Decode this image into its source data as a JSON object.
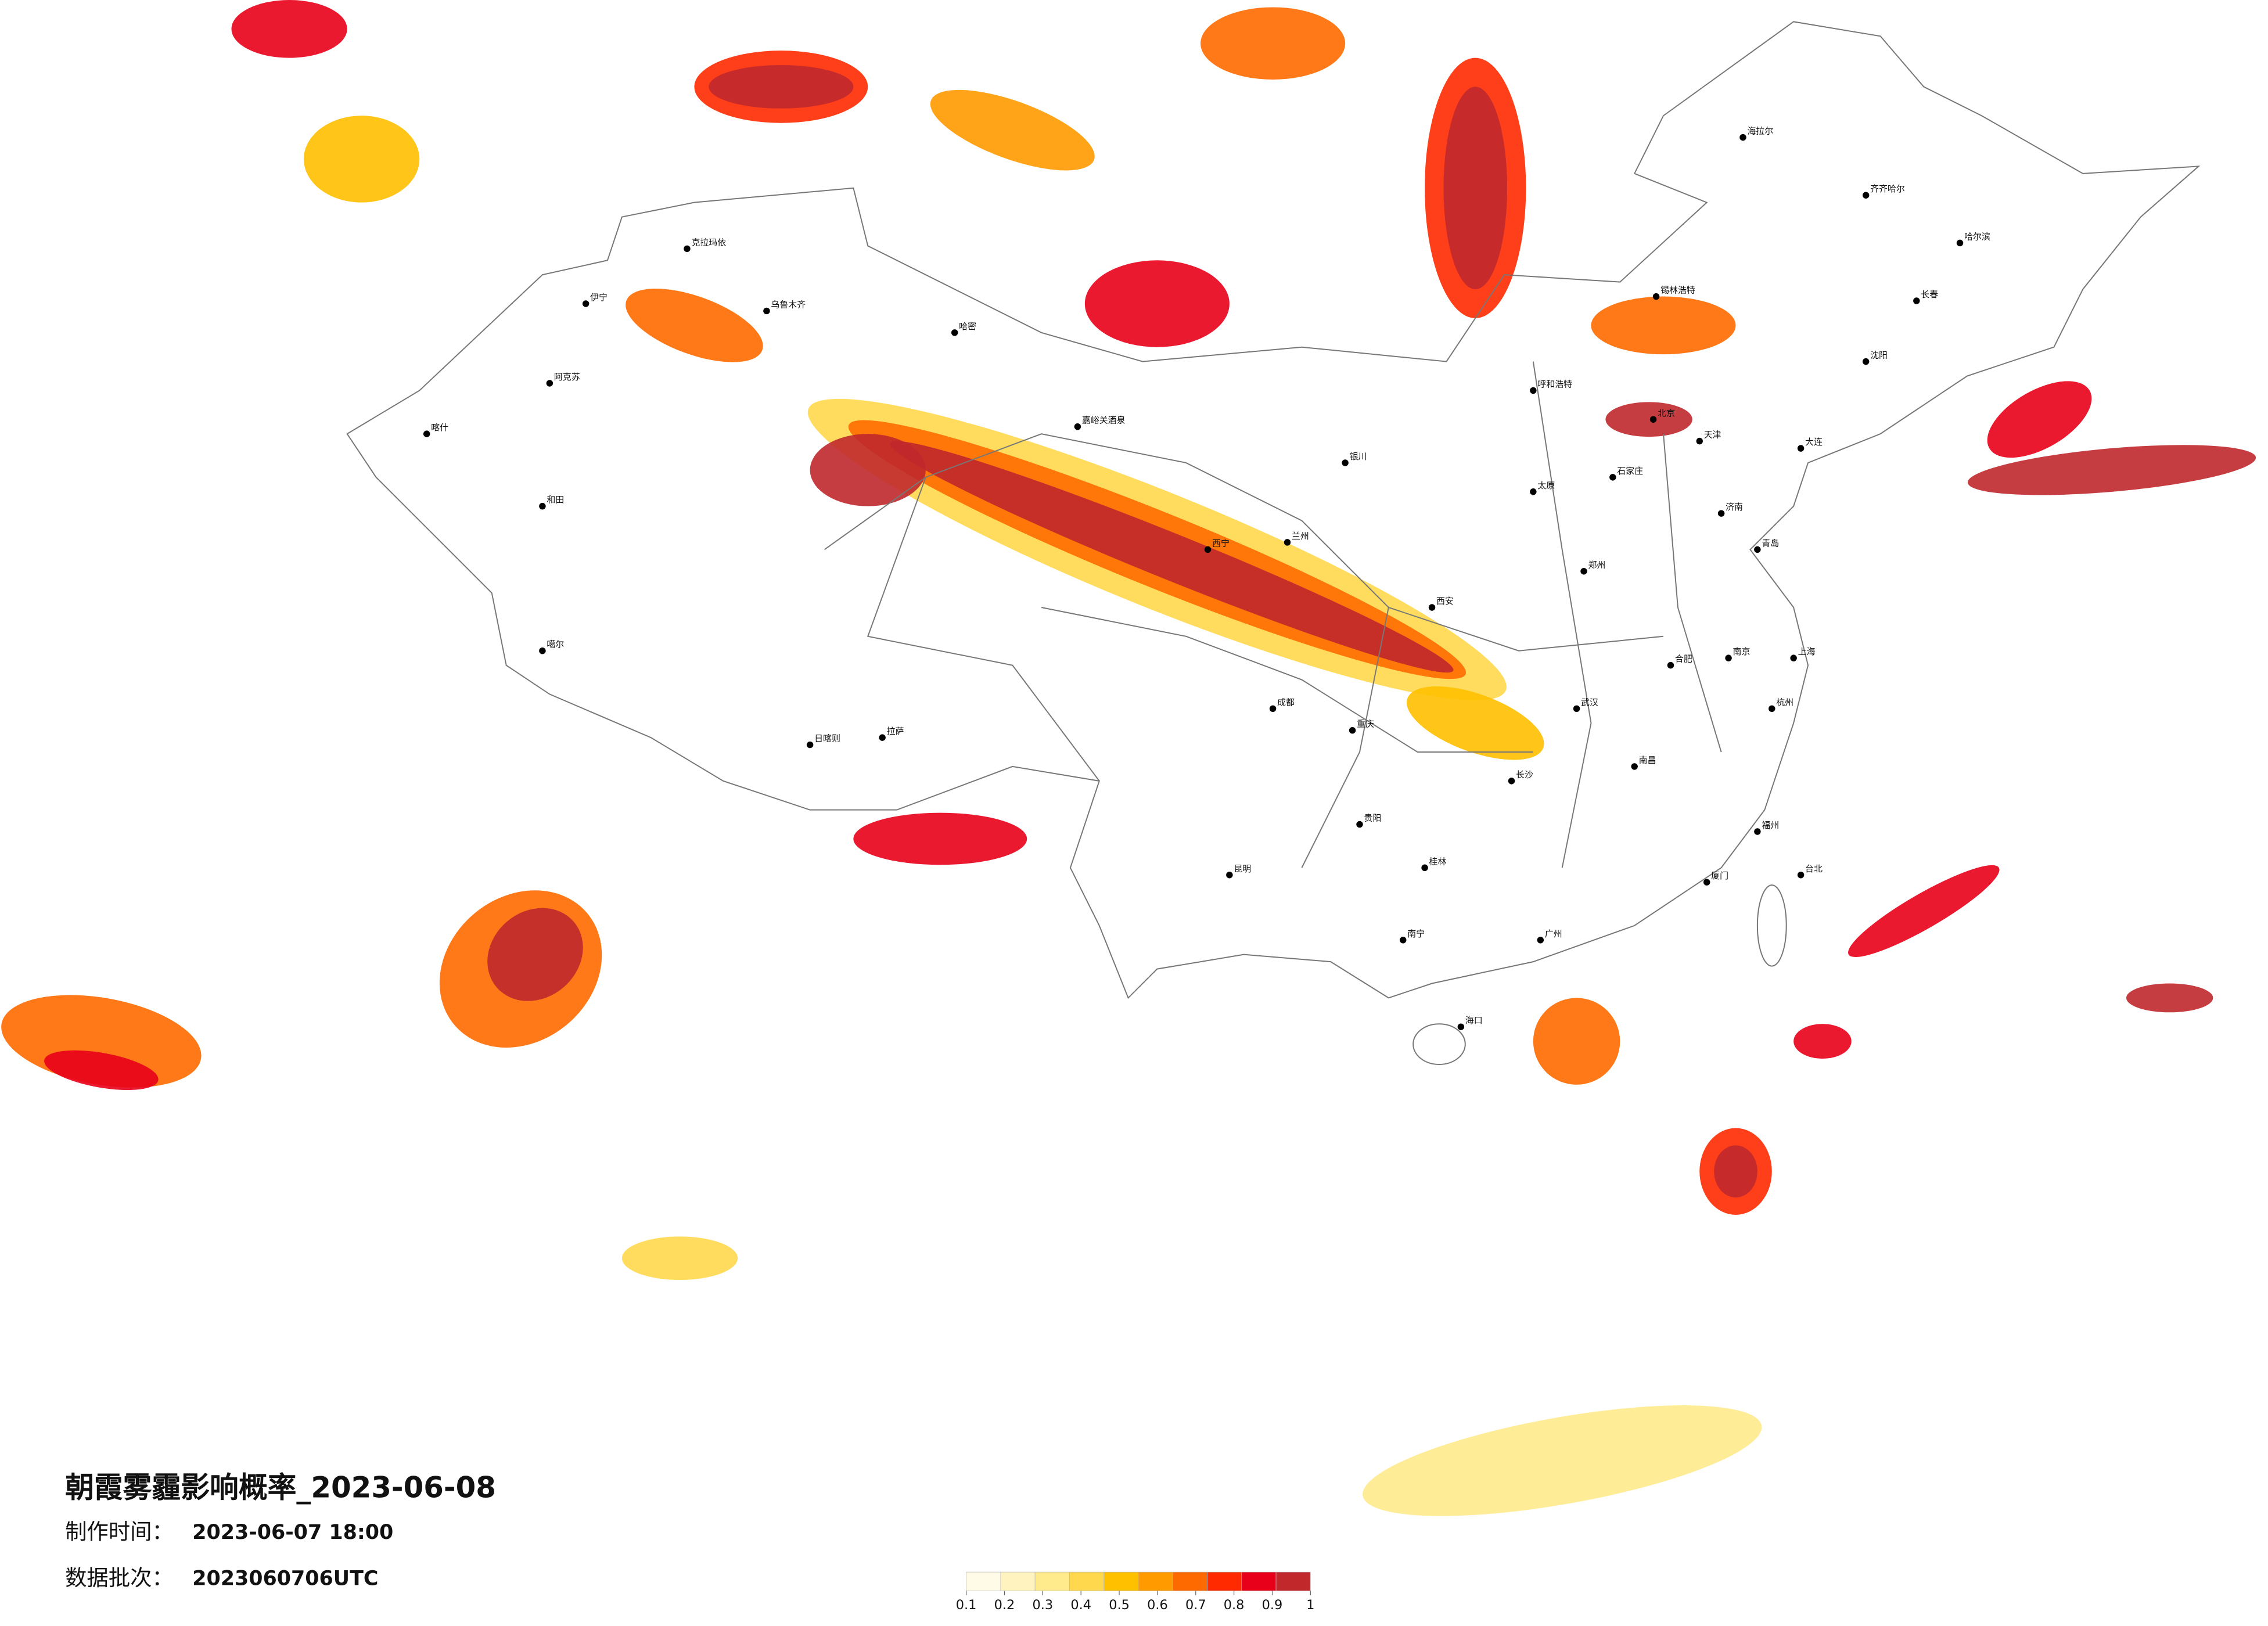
{
  "header": {
    "title": "朝霞雾霾影响概率_2023-06-08",
    "time_label": "制作时间：",
    "time_value": "2023-06-07 18:00",
    "batch_label": "数据批次：",
    "batch_value": "2023060706UTC"
  },
  "legend": {
    "colors": [
      "#fffbe6",
      "#fff3bf",
      "#ffea8c",
      "#ffd84d",
      "#ffc000",
      "#ff9a00",
      "#ff6a00",
      "#ff2a00",
      "#e8001a",
      "#c0282c"
    ],
    "ticks": [
      0.1,
      0.2,
      0.3,
      0.4,
      0.5,
      0.6,
      0.7,
      0.8,
      0.9,
      1
    ]
  },
  "cities": [
    "海拉尔",
    "齐齐哈尔",
    "哈尔滨",
    "长春",
    "沈阳",
    "北京",
    "天津",
    "呼和浩特",
    "石家庄",
    "太原",
    "济南",
    "郑州",
    "西安",
    "兰州",
    "西宁",
    "银川",
    "乌鲁木齐",
    "克拉玛依",
    "伊宁",
    "阿克苏",
    "喀什",
    "和田",
    "哈密",
    "嘉峪关酒泉",
    "噶尔",
    "日喀则",
    "拉萨",
    "成都",
    "重庆",
    "贵阳",
    "昆明",
    "南宁",
    "广州",
    "长沙",
    "武汉",
    "南昌",
    "合肥",
    "南京",
    "上海",
    "杭州",
    "福州",
    "台北",
    "海口",
    "锡林浩特",
    "大连",
    "青岛",
    "厦门",
    "桂林"
  ]
}
